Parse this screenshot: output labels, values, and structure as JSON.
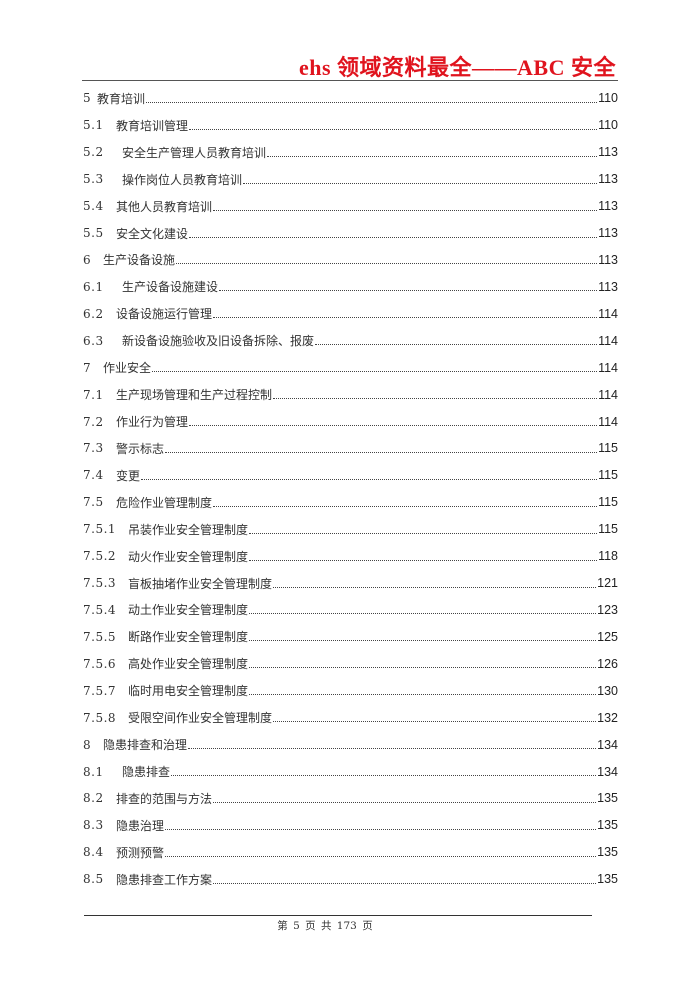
{
  "header": {
    "title": "ehs 领域资料最全——ABC 安全",
    "color": "#e0141e"
  },
  "toc": [
    {
      "num": "5",
      "title": "教育培训",
      "page": "110"
    },
    {
      "num": "5.1",
      "title": "教育培训管理",
      "page": "110"
    },
    {
      "num": "5.2",
      "title": "安全生产管理人员教育培训",
      "page": "113"
    },
    {
      "num": "5.3",
      "title": "操作岗位人员教育培训",
      "page": "113"
    },
    {
      "num": "5.4",
      "title": "其他人员教育培训",
      "page": "113"
    },
    {
      "num": "5.5",
      "title": "安全文化建设",
      "page": "113"
    },
    {
      "num": "6",
      "title": "生产设备设施",
      "page": "113"
    },
    {
      "num": "6.1",
      "title": "生产设备设施建设",
      "page": "113"
    },
    {
      "num": "6.2",
      "title": "设备设施运行管理",
      "page": "114"
    },
    {
      "num": "6.3",
      "title": "新设备设施验收及旧设备拆除、报废",
      "page": "114"
    },
    {
      "num": "7",
      "title": "作业安全",
      "page": "114"
    },
    {
      "num": "7.1",
      "title": "生产现场管理和生产过程控制",
      "page": "114"
    },
    {
      "num": "7.2",
      "title": "作业行为管理",
      "page": "114"
    },
    {
      "num": "7.3",
      "title": "警示标志",
      "page": "115"
    },
    {
      "num": "7.4",
      "title": "变更",
      "page": "115"
    },
    {
      "num": "7.5",
      "title": "危险作业管理制度",
      "page": "115"
    },
    {
      "num": "7.5.1",
      "title": "吊装作业安全管理制度",
      "page": "115"
    },
    {
      "num": "7.5.2",
      "title": "动火作业安全管理制度",
      "page": "118"
    },
    {
      "num": "7.5.3",
      "title": "盲板抽堵作业安全管理制度",
      "page": "121"
    },
    {
      "num": "7.5.4",
      "title": "动土作业安全管理制度",
      "page": "123"
    },
    {
      "num": "7.5.5",
      "title": "断路作业安全管理制度",
      "page": "125"
    },
    {
      "num": "7.5.6",
      "title": "高处作业安全管理制度",
      "page": "126"
    },
    {
      "num": "7.5.7",
      "title": "临时用电安全管理制度",
      "page": "130"
    },
    {
      "num": "7.5.8",
      "title": "受限空间作业安全管理制度",
      "page": "132"
    },
    {
      "num": "8",
      "title": "隐患排查和治理",
      "page": "134"
    },
    {
      "num": "8.1",
      "title": "隐患排查",
      "page": "134"
    },
    {
      "num": "8.2",
      "title": "排查的范围与方法",
      "page": "135"
    },
    {
      "num": "8.3",
      "title": "隐患治理",
      "page": "135"
    },
    {
      "num": "8.4",
      "title": "预测预警",
      "page": "135"
    },
    {
      "num": "8.5",
      "title": "隐患排查工作方案",
      "page": "135"
    }
  ],
  "footer": {
    "text": "第 5 页 共 173 页"
  }
}
